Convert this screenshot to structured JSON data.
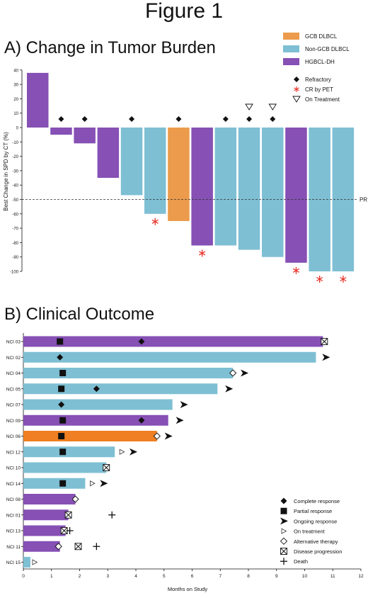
{
  "figure_title": "Figure 1",
  "colors": {
    "gcb": "#eb9b4b",
    "nongcb": "#7ebfd3",
    "hgbcl": "#8650b5",
    "cr_pet": "#e8332b",
    "orange_bar": "#ef7f22"
  },
  "chart_data": [
    {
      "type": "bar",
      "title": "A) Change in Tumor Burden",
      "ylabel": "Best Change in SPD by CT (%)",
      "ylim": [
        -100,
        40
      ],
      "yticks": [
        40,
        30,
        20,
        10,
        0,
        -10,
        -20,
        -30,
        -40,
        -50,
        -60,
        -70,
        -80,
        -90,
        -100
      ],
      "grid": false,
      "legend_position": "top-right",
      "reference_line": {
        "value": -50,
        "label": "PR"
      },
      "legend": [
        {
          "key": "gcb",
          "label": "GCB DLBCL"
        },
        {
          "key": "nongcb",
          "label": "Non-GCB DLBCL"
        },
        {
          "key": "hgbcl",
          "label": "HGBCL-DH"
        }
      ],
      "marker_legend": [
        {
          "symbol": "diamond4",
          "label": "Refractory"
        },
        {
          "symbol": "asterisk",
          "label": "CR by PET"
        },
        {
          "symbol": "tri-down",
          "label": "On Treatment"
        }
      ],
      "bars": [
        {
          "value": 38,
          "subtype": "hgbcl",
          "refractory": false,
          "cr_pet": false,
          "on_treatment": false
        },
        {
          "value": -5,
          "subtype": "hgbcl",
          "refractory": true,
          "cr_pet": false,
          "on_treatment": false
        },
        {
          "value": -11,
          "subtype": "hgbcl",
          "refractory": true,
          "cr_pet": false,
          "on_treatment": false
        },
        {
          "value": -35,
          "subtype": "hgbcl",
          "refractory": false,
          "cr_pet": false,
          "on_treatment": false
        },
        {
          "value": -47,
          "subtype": "nongcb",
          "refractory": true,
          "cr_pet": false,
          "on_treatment": false
        },
        {
          "value": -60,
          "subtype": "nongcb",
          "refractory": false,
          "cr_pet": true,
          "on_treatment": false
        },
        {
          "value": -65,
          "subtype": "gcb",
          "refractory": true,
          "cr_pet": false,
          "on_treatment": false
        },
        {
          "value": -82,
          "subtype": "hgbcl",
          "refractory": false,
          "cr_pet": true,
          "on_treatment": false
        },
        {
          "value": -82,
          "subtype": "nongcb",
          "refractory": true,
          "cr_pet": false,
          "on_treatment": false
        },
        {
          "value": -85,
          "subtype": "nongcb",
          "refractory": true,
          "cr_pet": false,
          "on_treatment": true
        },
        {
          "value": -90,
          "subtype": "nongcb",
          "refractory": true,
          "cr_pet": false,
          "on_treatment": true
        },
        {
          "value": -94,
          "subtype": "hgbcl",
          "refractory": false,
          "cr_pet": true,
          "on_treatment": false
        },
        {
          "value": -100,
          "subtype": "nongcb",
          "refractory": false,
          "cr_pet": true,
          "on_treatment": false
        },
        {
          "value": -100,
          "subtype": "nongcb",
          "refractory": false,
          "cr_pet": true,
          "on_treatment": false
        }
      ]
    },
    {
      "type": "bar",
      "orientation": "horizontal",
      "title": "B) Clinical Outcome",
      "xlabel": "Months on Study",
      "xlim": [
        0,
        12
      ],
      "xticks": [
        0,
        1,
        2,
        3,
        4,
        5,
        6,
        7,
        8,
        9,
        10,
        11,
        12
      ],
      "grid": false,
      "legend_position": "bottom-right",
      "legend": [
        {
          "symbol": "diamond-filled",
          "label": "Complete response"
        },
        {
          "symbol": "square-filled",
          "label": "Partial response"
        },
        {
          "symbol": "arrow",
          "label": "Ongoing response"
        },
        {
          "symbol": "triangle-open",
          "label": "On treatment"
        },
        {
          "symbol": "diamond-open",
          "label": "Alternative therapy"
        },
        {
          "symbol": "square-x",
          "label": "Disease progression"
        },
        {
          "symbol": "plus",
          "label": "Death"
        }
      ],
      "patients": [
        {
          "label": "NCI 03",
          "months": 10.65,
          "subtype": "hgbcl",
          "pr": 1.3,
          "cr": 4.2,
          "pd": 10.7
        },
        {
          "label": "NCI 02",
          "months": 10.4,
          "subtype": "nongcb",
          "cr": 1.3,
          "ongoing": 10.75
        },
        {
          "label": "NCI 04",
          "months": 7.45,
          "subtype": "nongcb",
          "pr": 1.4,
          "alt": 7.45,
          "ongoing": 7.85
        },
        {
          "label": "NCI 05",
          "months": 6.9,
          "subtype": "nongcb",
          "pr": 1.35,
          "cr": 2.6,
          "ongoing": 7.3
        },
        {
          "label": "NCI 07",
          "months": 5.3,
          "subtype": "nongcb",
          "cr": 1.35,
          "ongoing": 5.7
        },
        {
          "label": "NCI 09",
          "months": 5.15,
          "subtype": "hgbcl",
          "pr": 1.4,
          "cr": 4.2,
          "ongoing": 5.55
        },
        {
          "label": "NCI 06",
          "months": 4.75,
          "subtype": "orange_bar",
          "pr": 1.35,
          "alt": 4.75,
          "ongoing": 5.15
        },
        {
          "label": "NCI 12",
          "months": 3.25,
          "subtype": "nongcb",
          "pr": 1.4,
          "on_tx": 3.5,
          "ongoing": 3.9
        },
        {
          "label": "NCI 10",
          "months": 2.95,
          "subtype": "nongcb",
          "pd": 2.95
        },
        {
          "label": "NCI 14",
          "months": 2.2,
          "subtype": "nongcb",
          "pr": 1.4,
          "on_tx": 2.45,
          "ongoing": 2.85
        },
        {
          "label": "NCI 08",
          "months": 1.85,
          "subtype": "hgbcl",
          "alt": 1.85
        },
        {
          "label": "NCI 01",
          "months": 1.6,
          "subtype": "hgbcl",
          "pd": 1.6,
          "death": 3.15
        },
        {
          "label": "NCI 13",
          "months": 1.5,
          "subtype": "hgbcl",
          "pd": 1.45,
          "death": 1.65
        },
        {
          "label": "NCI 11",
          "months": 1.3,
          "subtype": "hgbcl",
          "alt": 1.25,
          "pd": 1.95,
          "death": 2.6
        },
        {
          "label": "NCI 15",
          "months": 0.25,
          "subtype": "nongcb",
          "on_tx": 0.4
        }
      ]
    }
  ]
}
